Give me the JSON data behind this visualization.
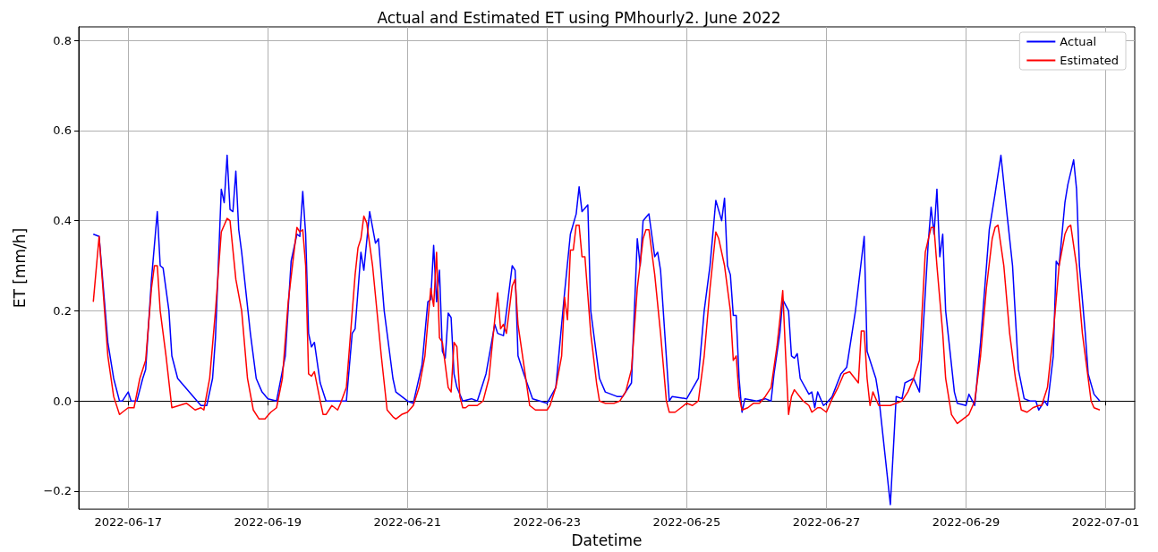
{
  "chart_data": {
    "type": "line",
    "title": "Actual and Estimated ET using PMhourly2. June 2022",
    "xlabel": "Datetime",
    "ylabel": "ET [mm/h]",
    "xlim": [
      "2022-06-16T07:00",
      "2022-07-01T10:00"
    ],
    "xticks": [
      "2022-06-17",
      "2022-06-19",
      "2022-06-21",
      "2022-06-23",
      "2022-06-25",
      "2022-06-27",
      "2022-06-29",
      "2022-07-01"
    ],
    "ylim": [
      -0.24,
      0.83
    ],
    "yticks": [
      {
        "value": -0.2,
        "label": "−0.2"
      },
      {
        "value": 0,
        "label": "0.0"
      },
      0.2,
      0.4,
      0.6,
      0.8
    ],
    "grid": true,
    "legend": "top right",
    "marker": "none",
    "line_style": "solid",
    "series": [
      {
        "name": "Actual",
        "color": "#0000ff",
        "x": [
          "2022-06-16T12:00",
          "2022-06-16T14:00",
          "2022-06-16T17:00",
          "2022-06-16T19:00",
          "2022-06-16T21:00",
          "2022-06-16T22:00",
          "2022-06-17T00:00",
          "2022-06-17T01:00",
          "2022-06-17T03:00",
          "2022-06-17T05:00",
          "2022-06-17T06:00",
          "2022-06-17T08:00",
          "2022-06-17T10:00",
          "2022-06-17T11:00",
          "2022-06-17T12:00",
          "2022-06-17T14:00",
          "2022-06-17T15:00",
          "2022-06-17T17:00",
          "2022-06-18T01:00",
          "2022-06-18T03:00",
          "2022-06-18T05:00",
          "2022-06-18T06:00",
          "2022-06-18T08:00",
          "2022-06-18T09:00",
          "2022-06-18T10:00",
          "2022-06-18T11:00",
          "2022-06-18T12:00",
          "2022-06-18T13:00",
          "2022-06-18T14:00",
          "2022-06-18T15:00",
          "2022-06-18T18:00",
          "2022-06-18T20:00",
          "2022-06-18T22:00",
          "2022-06-19T00:00",
          "2022-06-19T03:00",
          "2022-06-19T06:00",
          "2022-06-19T08:00",
          "2022-06-19T10:00",
          "2022-06-19T11:00",
          "2022-06-19T12:00",
          "2022-06-19T13:00",
          "2022-06-19T14:00",
          "2022-06-19T15:00",
          "2022-06-19T16:00",
          "2022-06-19T18:00",
          "2022-06-19T20:00",
          "2022-06-20T00:00",
          "2022-06-20T03:00",
          "2022-06-20T05:00",
          "2022-06-20T06:00",
          "2022-06-20T08:00",
          "2022-06-20T09:00",
          "2022-06-20T11:00",
          "2022-06-20T13:00",
          "2022-06-20T14:00",
          "2022-06-20T16:00",
          "2022-06-20T19:00",
          "2022-06-20T20:00",
          "2022-06-21T00:00",
          "2022-06-21T02:00",
          "2022-06-21T05:00",
          "2022-06-21T07:00",
          "2022-06-21T08:00",
          "2022-06-21T09:00",
          "2022-06-21T10:00",
          "2022-06-21T11:00",
          "2022-06-21T12:00",
          "2022-06-21T13:00",
          "2022-06-21T14:00",
          "2022-06-21T15:00",
          "2022-06-21T16:00",
          "2022-06-21T17:00",
          "2022-06-21T19:00",
          "2022-06-21T22:00",
          "2022-06-22T00:00",
          "2022-06-22T03:00",
          "2022-06-22T06:00",
          "2022-06-22T07:00",
          "2022-06-22T09:00",
          "2022-06-22T12:00",
          "2022-06-22T13:00",
          "2022-06-22T14:00",
          "2022-06-22T16:00",
          "2022-06-22T19:00",
          "2022-06-23T00:00",
          "2022-06-23T03:00",
          "2022-06-23T06:00",
          "2022-06-23T08:00",
          "2022-06-23T10:00",
          "2022-06-23T11:00",
          "2022-06-23T12:00",
          "2022-06-23T14:00",
          "2022-06-23T15:00",
          "2022-06-23T18:00",
          "2022-06-23T20:00",
          "2022-06-24T00:00",
          "2022-06-24T02:00",
          "2022-06-24T05:00",
          "2022-06-24T07:00",
          "2022-06-24T08:00",
          "2022-06-24T09:00",
          "2022-06-24T11:00",
          "2022-06-24T13:00",
          "2022-06-24T14:00",
          "2022-06-24T15:00",
          "2022-06-24T18:00",
          "2022-06-24T19:00",
          "2022-06-25T00:00",
          "2022-06-25T04:00",
          "2022-06-25T06:00",
          "2022-06-25T08:00",
          "2022-06-25T10:00",
          "2022-06-25T12:00",
          "2022-06-25T13:00",
          "2022-06-25T14:00",
          "2022-06-25T15:00",
          "2022-06-25T16:00",
          "2022-06-25T17:00",
          "2022-06-25T18:00",
          "2022-06-25T19:00",
          "2022-06-25T20:00",
          "2022-06-26T00:00",
          "2022-06-26T03:00",
          "2022-06-26T05:00",
          "2022-06-26T06:00",
          "2022-06-26T08:00",
          "2022-06-26T09:00",
          "2022-06-26T11:00",
          "2022-06-26T12:00",
          "2022-06-26T13:00",
          "2022-06-26T14:00",
          "2022-06-26T15:00",
          "2022-06-26T18:00",
          "2022-06-26T19:00",
          "2022-06-26T20:00",
          "2022-06-26T21:00",
          "2022-06-26T23:00",
          "2022-06-27T00:00",
          "2022-06-27T02:00",
          "2022-06-27T05:00",
          "2022-06-27T07:00",
          "2022-06-27T10:00",
          "2022-06-27T13:00",
          "2022-06-27T14:00",
          "2022-06-27T17:00",
          "2022-06-27T18:00",
          "2022-06-27T22:00",
          "2022-06-28T00:00",
          "2022-06-28T02:00",
          "2022-06-28T03:00",
          "2022-06-28T06:00",
          "2022-06-28T08:00",
          "2022-06-28T11:00",
          "2022-06-28T12:00",
          "2022-06-28T13:00",
          "2022-06-28T14:00",
          "2022-06-28T15:00",
          "2022-06-28T16:00",
          "2022-06-28T17:00",
          "2022-06-28T20:00",
          "2022-06-28T21:00",
          "2022-06-29T00:00",
          "2022-06-29T01:00",
          "2022-06-29T03:00",
          "2022-06-29T05:00",
          "2022-06-29T08:00",
          "2022-06-29T10:00",
          "2022-06-29T12:00",
          "2022-06-29T14:00",
          "2022-06-29T16:00",
          "2022-06-29T18:00",
          "2022-06-29T20:00",
          "2022-06-29T22:00",
          "2022-06-30T00:00",
          "2022-06-30T01:00",
          "2022-06-30T03:00",
          "2022-06-30T04:00",
          "2022-06-30T06:00",
          "2022-06-30T07:00",
          "2022-06-30T08:00",
          "2022-06-30T10:00",
          "2022-06-30T11:00",
          "2022-06-30T13:00",
          "2022-06-30T14:00",
          "2022-06-30T15:00",
          "2022-06-30T17:00",
          "2022-06-30T18:00",
          "2022-06-30T20:00",
          "2022-06-30T22:00"
        ],
        "values": [
          0.37,
          0.365,
          0.13,
          0.05,
          0.0,
          0.0,
          0.02,
          0.0,
          0.0,
          0.05,
          0.07,
          0.27,
          0.42,
          0.3,
          0.295,
          0.2,
          0.1,
          0.05,
          -0.01,
          -0.01,
          0.05,
          0.14,
          0.47,
          0.44,
          0.545,
          0.425,
          0.42,
          0.51,
          0.38,
          0.33,
          0.15,
          0.05,
          0.02,
          0.005,
          0.0,
          0.1,
          0.31,
          0.37,
          0.365,
          0.465,
          0.37,
          0.15,
          0.12,
          0.13,
          0.04,
          0.0,
          0.0,
          0.0,
          0.15,
          0.16,
          0.33,
          0.29,
          0.42,
          0.35,
          0.36,
          0.2,
          0.05,
          0.02,
          0.0,
          -0.005,
          0.08,
          0.22,
          0.225,
          0.345,
          0.22,
          0.29,
          0.11,
          0.095,
          0.195,
          0.185,
          0.06,
          0.03,
          0.0,
          0.005,
          0.0,
          0.06,
          0.17,
          0.15,
          0.145,
          0.3,
          0.29,
          0.1,
          0.06,
          0.005,
          -0.005,
          0.03,
          0.24,
          0.37,
          0.415,
          0.475,
          0.42,
          0.435,
          0.2,
          0.05,
          0.02,
          0.01,
          0.01,
          0.04,
          0.36,
          0.3,
          0.4,
          0.415,
          0.32,
          0.33,
          0.29,
          0.0,
          0.01,
          0.005,
          0.05,
          0.2,
          0.3,
          0.445,
          0.4,
          0.45,
          0.3,
          0.28,
          0.19,
          0.19,
          0.05,
          -0.025,
          0.005,
          0.0,
          0.005,
          0.0,
          0.06,
          0.15,
          0.225,
          0.2,
          0.1,
          0.095,
          0.105,
          0.05,
          0.015,
          0.02,
          -0.015,
          0.02,
          -0.01,
          -0.005,
          0.01,
          0.06,
          0.075,
          0.2,
          0.365,
          0.11,
          0.05,
          0.01,
          -0.23,
          0.01,
          0.005,
          0.04,
          0.05,
          0.02,
          0.35,
          0.43,
          0.37,
          0.47,
          0.32,
          0.37,
          0.2,
          0.02,
          -0.005,
          -0.01,
          0.015,
          -0.01,
          0.13,
          0.38,
          0.46,
          0.545,
          0.42,
          0.3,
          0.07,
          0.005,
          0.0,
          0.0,
          -0.02,
          0.0,
          -0.01,
          0.1,
          0.31,
          0.3,
          0.44,
          0.48,
          0.535,
          0.47,
          0.3,
          0.15,
          0.06,
          0.015,
          0.0
        ]
      },
      {
        "name": "Estimated",
        "color": "#ff0000",
        "x": [
          "2022-06-16T12:00",
          "2022-06-16T14:00",
          "2022-06-16T17:00",
          "2022-06-16T19:00",
          "2022-06-16T21:00",
          "2022-06-16T22:00",
          "2022-06-17T00:00",
          "2022-06-17T02:00",
          "2022-06-17T04:00",
          "2022-06-17T06:00",
          "2022-06-17T08:00",
          "2022-06-17T09:00",
          "2022-06-17T10:00",
          "2022-06-17T11:00",
          "2022-06-17T13:00",
          "2022-06-17T15:00",
          "2022-06-17T20:00",
          "2022-06-17T23:00",
          "2022-06-18T01:00",
          "2022-06-18T02:00",
          "2022-06-18T04:00",
          "2022-06-18T06:00",
          "2022-06-18T08:00",
          "2022-06-18T09:00",
          "2022-06-18T10:00",
          "2022-06-18T11:00",
          "2022-06-18T13:00",
          "2022-06-18T15:00",
          "2022-06-18T17:00",
          "2022-06-18T19:00",
          "2022-06-18T21:00",
          "2022-06-18T23:00",
          "2022-06-19T01:00",
          "2022-06-19T03:00",
          "2022-06-19T05:00",
          "2022-06-19T07:00",
          "2022-06-19T09:00",
          "2022-06-19T10:00",
          "2022-06-19T11:00",
          "2022-06-19T12:00",
          "2022-06-19T13:00",
          "2022-06-19T14:00",
          "2022-06-19T15:00",
          "2022-06-19T16:00",
          "2022-06-19T18:00",
          "2022-06-19T19:00",
          "2022-06-19T20:00",
          "2022-06-19T22:00",
          "2022-06-20T00:00",
          "2022-06-20T01:00",
          "2022-06-20T03:00",
          "2022-06-20T06:00",
          "2022-06-20T07:00",
          "2022-06-20T08:00",
          "2022-06-20T09:00",
          "2022-06-20T10:00",
          "2022-06-20T12:00",
          "2022-06-20T15:00",
          "2022-06-20T17:00",
          "2022-06-20T19:00",
          "2022-06-20T20:00",
          "2022-06-20T22:00",
          "2022-06-21T00:00",
          "2022-06-21T02:00",
          "2022-06-21T04:00",
          "2022-06-21T06:00",
          "2022-06-21T08:00",
          "2022-06-21T09:00",
          "2022-06-21T10:00",
          "2022-06-21T11:00",
          "2022-06-21T12:00",
          "2022-06-21T14:00",
          "2022-06-21T15:00",
          "2022-06-21T16:00",
          "2022-06-21T17:00",
          "2022-06-21T18:00",
          "2022-06-21T19:00",
          "2022-06-21T20:00",
          "2022-06-21T21:00",
          "2022-06-22T00:00",
          "2022-06-22T02:00",
          "2022-06-22T04:00",
          "2022-06-22T06:00",
          "2022-06-22T07:00",
          "2022-06-22T08:00",
          "2022-06-22T09:00",
          "2022-06-22T10:00",
          "2022-06-22T12:00",
          "2022-06-22T13:00",
          "2022-06-22T14:00",
          "2022-06-22T16:00",
          "2022-06-22T18:00",
          "2022-06-22T20:00",
          "2022-06-22T22:00",
          "2022-06-23T00:00",
          "2022-06-23T01:00",
          "2022-06-23T03:00",
          "2022-06-23T05:00",
          "2022-06-23T06:00",
          "2022-06-23T07:00",
          "2022-06-23T08:00",
          "2022-06-23T09:00",
          "2022-06-23T10:00",
          "2022-06-23T11:00",
          "2022-06-23T12:00",
          "2022-06-23T13:00",
          "2022-06-23T15:00",
          "2022-06-23T17:00",
          "2022-06-23T18:00",
          "2022-06-23T20:00",
          "2022-06-23T23:00",
          "2022-06-24T01:00",
          "2022-06-24T03:00",
          "2022-06-24T05:00",
          "2022-06-24T07:00",
          "2022-06-24T09:00",
          "2022-06-24T10:00",
          "2022-06-24T11:00",
          "2022-06-24T13:00",
          "2022-06-24T15:00",
          "2022-06-24T17:00",
          "2022-06-24T18:00",
          "2022-06-24T20:00",
          "2022-06-24T22:00",
          "2022-06-25T00:00",
          "2022-06-25T02:00",
          "2022-06-25T04:00",
          "2022-06-25T06:00",
          "2022-06-25T08:00",
          "2022-06-25T10:00",
          "2022-06-25T11:00",
          "2022-06-25T13:00",
          "2022-06-25T15:00",
          "2022-06-25T16:00",
          "2022-06-25T17:00",
          "2022-06-25T18:00",
          "2022-06-25T19:00",
          "2022-06-25T21:00",
          "2022-06-25T23:00",
          "2022-06-26T01:00",
          "2022-06-26T03:00",
          "2022-06-26T05:00",
          "2022-06-26T07:00",
          "2022-06-26T08:00",
          "2022-06-26T09:00",
          "2022-06-26T10:00",
          "2022-06-26T11:00",
          "2022-06-26T12:00",
          "2022-06-26T13:00",
          "2022-06-26T16:00",
          "2022-06-26T18:00",
          "2022-06-26T19:00",
          "2022-06-26T21:00",
          "2022-06-26T22:00",
          "2022-06-27T00:00",
          "2022-06-27T02:00",
          "2022-06-27T04:00",
          "2022-06-27T06:00",
          "2022-06-27T08:00",
          "2022-06-27T11:00",
          "2022-06-27T12:00",
          "2022-06-27T13:00",
          "2022-06-27T14:00",
          "2022-06-27T15:00",
          "2022-06-27T16:00",
          "2022-06-27T18:00",
          "2022-06-27T20:00",
          "2022-06-27T22:00",
          "2022-06-28T00:00",
          "2022-06-28T02:00",
          "2022-06-28T04:00",
          "2022-06-28T06:00",
          "2022-06-28T08:00",
          "2022-06-28T10:00",
          "2022-06-28T12:00",
          "2022-06-28T13:00",
          "2022-06-28T14:00",
          "2022-06-28T16:00",
          "2022-06-28T17:00",
          "2022-06-28T19:00",
          "2022-06-28T21:00",
          "2022-06-28T23:00",
          "2022-06-29T01:00",
          "2022-06-29T03:00",
          "2022-06-29T05:00",
          "2022-06-29T07:00",
          "2022-06-29T09:00",
          "2022-06-29T10:00",
          "2022-06-29T11:00",
          "2022-06-29T13:00",
          "2022-06-29T15:00",
          "2022-06-29T17:00",
          "2022-06-29T19:00",
          "2022-06-29T21:00",
          "2022-06-29T23:00",
          "2022-06-30T01:00",
          "2022-06-30T02:00",
          "2022-06-30T04:00",
          "2022-06-30T06:00",
          "2022-06-30T08:00",
          "2022-06-30T10:00",
          "2022-06-30T11:00",
          "2022-06-30T12:00",
          "2022-06-30T14:00",
          "2022-06-30T16:00",
          "2022-06-30T18:00",
          "2022-06-30T19:00",
          "2022-06-30T20:00",
          "2022-06-30T22:00"
        ],
        "values": [
          0.22,
          0.365,
          0.1,
          0.01,
          -0.03,
          -0.025,
          -0.015,
          -0.015,
          0.05,
          0.09,
          0.25,
          0.3,
          0.3,
          0.2,
          0.1,
          -0.015,
          -0.005,
          -0.02,
          -0.015,
          -0.02,
          0.05,
          0.2,
          0.375,
          0.39,
          0.405,
          0.4,
          0.27,
          0.2,
          0.05,
          -0.02,
          -0.04,
          -0.04,
          -0.025,
          -0.015,
          0.05,
          0.22,
          0.33,
          0.385,
          0.375,
          0.38,
          0.3,
          0.06,
          0.055,
          0.065,
          0.0,
          -0.03,
          -0.03,
          -0.01,
          -0.02,
          -0.005,
          0.03,
          0.28,
          0.34,
          0.36,
          0.41,
          0.395,
          0.3,
          0.1,
          -0.02,
          -0.035,
          -0.04,
          -0.03,
          -0.025,
          -0.01,
          0.03,
          0.1,
          0.25,
          0.21,
          0.33,
          0.14,
          0.13,
          0.03,
          0.02,
          0.13,
          0.12,
          0.01,
          -0.015,
          -0.015,
          -0.01,
          -0.01,
          0.0,
          0.05,
          0.18,
          0.24,
          0.16,
          0.17,
          0.15,
          0.255,
          0.27,
          0.17,
          0.08,
          -0.01,
          -0.02,
          -0.02,
          -0.02,
          -0.01,
          0.03,
          0.1,
          0.23,
          0.18,
          0.335,
          0.335,
          0.39,
          0.39,
          0.32,
          0.32,
          0.15,
          0.04,
          0.0,
          -0.005,
          -0.005,
          0.0,
          0.02,
          0.07,
          0.25,
          0.36,
          0.38,
          0.38,
          0.28,
          0.15,
          0.0,
          -0.025,
          -0.025,
          -0.015,
          -0.005,
          -0.01,
          0.0,
          0.1,
          0.25,
          0.375,
          0.36,
          0.3,
          0.2,
          0.09,
          0.1,
          0.01,
          -0.02,
          -0.015,
          -0.005,
          -0.005,
          0.01,
          0.03,
          0.12,
          0.18,
          0.245,
          0.1,
          -0.03,
          0.01,
          0.025,
          0.0,
          -0.01,
          -0.025,
          -0.015,
          -0.015,
          -0.025,
          0.005,
          0.03,
          0.06,
          0.065,
          0.04,
          0.155,
          0.155,
          0.05,
          -0.01,
          0.02,
          -0.01,
          -0.01,
          -0.01,
          -0.005,
          0.0,
          0.02,
          0.05,
          0.09,
          0.33,
          0.385,
          0.385,
          0.3,
          0.15,
          0.05,
          -0.03,
          -0.05,
          -0.04,
          -0.03,
          0.0,
          0.1,
          0.25,
          0.36,
          0.385,
          0.39,
          0.3,
          0.15,
          0.05,
          -0.02,
          -0.025,
          -0.015,
          -0.01,
          -0.01,
          0.03,
          0.15,
          0.3,
          0.37,
          0.385,
          0.39,
          0.3,
          0.15,
          0.05,
          0.0,
          -0.015,
          -0.02
        ]
      }
    ]
  }
}
